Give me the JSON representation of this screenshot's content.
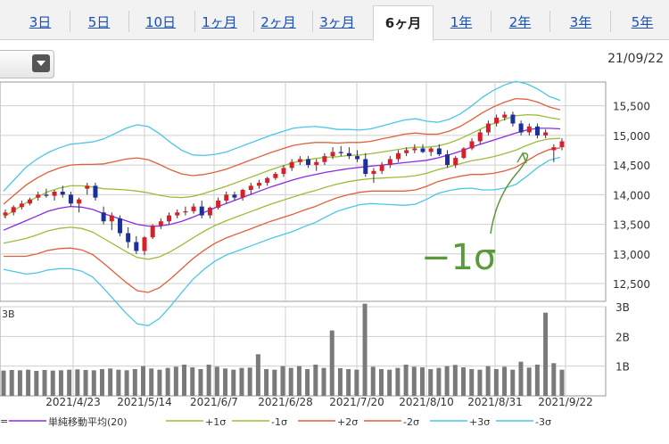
{
  "tabs": [
    {
      "label": "3日",
      "active": false
    },
    {
      "label": "5日",
      "active": false
    },
    {
      "label": "10日",
      "active": false
    },
    {
      "label": "1ヶ月",
      "active": false
    },
    {
      "label": "2ヶ月",
      "active": false
    },
    {
      "label": "3ヶ月",
      "active": false
    },
    {
      "label": "6ヶ月",
      "active": true
    },
    {
      "label": "1年",
      "active": false
    },
    {
      "label": "2年",
      "active": false
    },
    {
      "label": "3年",
      "active": false
    },
    {
      "label": "5年",
      "active": false
    }
  ],
  "header": {
    "date": "21/09/22"
  },
  "annotation": {
    "text": "−1σ",
    "color": "#5a9a3a"
  },
  "colors": {
    "up": "#d9202a",
    "down": "#1c2f9c",
    "ma": "#8a2be2",
    "s1": "#9bbd3a",
    "s2": "#e0603a",
    "s3": "#4cc6e6",
    "volume": "#7a7a7a"
  },
  "chart_data": {
    "type": "line",
    "price": {
      "ylim": [
        12200,
        15900
      ],
      "yticks": [
        "15,500",
        "15,000",
        "14,500",
        "14,000",
        "13,500",
        "13,000",
        "12,500"
      ],
      "ytick_values": [
        15500,
        15000,
        14500,
        14000,
        13500,
        13000,
        12500
      ],
      "bollinger_center": [
        13400,
        13480,
        13560,
        13640,
        13720,
        13770,
        13800,
        13790,
        13750,
        13680,
        13620,
        13560,
        13500,
        13470,
        13470,
        13500,
        13550,
        13620,
        13700,
        13780,
        13850,
        13920,
        13990,
        14060,
        14130,
        14190,
        14250,
        14300,
        14340,
        14380,
        14410,
        14440,
        14460,
        14480,
        14500,
        14520,
        14540,
        14560,
        14580,
        14620,
        14670,
        14730,
        14800,
        14860,
        14920,
        14980,
        15040,
        15090,
        15120,
        15120,
        15110
      ],
      "sigma": [
        220,
        260,
        300,
        320,
        330,
        340,
        350,
        360,
        380,
        420,
        470,
        520,
        560,
        560,
        520,
        460,
        400,
        350,
        320,
        300,
        290,
        290,
        290,
        290,
        290,
        290,
        290,
        280,
        270,
        250,
        230,
        220,
        210,
        210,
        220,
        230,
        240,
        240,
        220,
        200,
        200,
        210,
        230,
        260,
        280,
        290,
        290,
        260,
        220,
        180,
        160
      ],
      "candles": [
        [
          13650,
          13750,
          13600,
          13700
        ],
        [
          13700,
          13820,
          13650,
          13790
        ],
        [
          13790,
          13900,
          13750,
          13850
        ],
        [
          13850,
          13950,
          13820,
          13920
        ],
        [
          13950,
          14050,
          13900,
          14000
        ],
        [
          14000,
          14100,
          13950,
          13980
        ],
        [
          13980,
          14080,
          13900,
          14050
        ],
        [
          14050,
          14150,
          13950,
          14000
        ],
        [
          14000,
          14050,
          13800,
          13850
        ],
        [
          13850,
          13950,
          13700,
          13920
        ],
        [
          14100,
          14200,
          14000,
          14150
        ],
        [
          14150,
          14200,
          13900,
          13950
        ],
        [
          13700,
          13800,
          13500,
          13550
        ],
        [
          13550,
          13700,
          13400,
          13650
        ],
        [
          13600,
          13650,
          13300,
          13350
        ],
        [
          13350,
          13450,
          13100,
          13200
        ],
        [
          13200,
          13300,
          13000,
          13050
        ],
        [
          13050,
          13300,
          12980,
          13280
        ],
        [
          13280,
          13500,
          13250,
          13480
        ],
        [
          13480,
          13600,
          13420,
          13550
        ],
        [
          13550,
          13700,
          13500,
          13650
        ],
        [
          13650,
          13750,
          13600,
          13700
        ],
        [
          13700,
          13800,
          13650,
          13720
        ],
        [
          13720,
          13850,
          13680,
          13800
        ],
        [
          13800,
          13900,
          13600,
          13650
        ],
        [
          13650,
          13800,
          13600,
          13780
        ],
        [
          13780,
          13950,
          13750,
          13900
        ],
        [
          13900,
          14050,
          13850,
          14000
        ],
        [
          14000,
          14050,
          13900,
          13950
        ],
        [
          13950,
          14100,
          13900,
          14080
        ],
        [
          14080,
          14200,
          14000,
          14150
        ],
        [
          14150,
          14250,
          14100,
          14200
        ],
        [
          14200,
          14300,
          14150,
          14280
        ],
        [
          14280,
          14380,
          14250,
          14350
        ],
        [
          14350,
          14500,
          14300,
          14450
        ],
        [
          14450,
          14600,
          14400,
          14550
        ],
        [
          14550,
          14650,
          14500,
          14600
        ],
        [
          14600,
          14650,
          14450,
          14500
        ],
        [
          14500,
          14600,
          14400,
          14550
        ],
        [
          14550,
          14700,
          14500,
          14650
        ],
        [
          14650,
          14800,
          14600,
          14720
        ],
        [
          14720,
          14820,
          14650,
          14700
        ],
        [
          14700,
          14800,
          14600,
          14650
        ],
        [
          14650,
          14750,
          14550,
          14600
        ],
        [
          14600,
          14700,
          14300,
          14350
        ],
        [
          14350,
          14450,
          14200,
          14400
        ],
        [
          14400,
          14550,
          14350,
          14500
        ],
        [
          14500,
          14650,
          14450,
          14600
        ],
        [
          14600,
          14750,
          14550,
          14700
        ],
        [
          14700,
          14800,
          14650,
          14750
        ],
        [
          14750,
          14850,
          14700,
          14780
        ],
        [
          14780,
          14850,
          14700,
          14720
        ],
        [
          14720,
          14800,
          14650,
          14780
        ],
        [
          14780,
          14850,
          14650,
          14680
        ],
        [
          14680,
          14750,
          14450,
          14500
        ],
        [
          14500,
          14650,
          14450,
          14620
        ],
        [
          14620,
          14800,
          14600,
          14780
        ],
        [
          14780,
          14950,
          14750,
          14900
        ],
        [
          14900,
          15100,
          14850,
          15050
        ],
        [
          15050,
          15250,
          15000,
          15200
        ],
        [
          15200,
          15350,
          15150,
          15300
        ],
        [
          15300,
          15400,
          15250,
          15350
        ],
        [
          15350,
          15400,
          15150,
          15200
        ],
        [
          15200,
          15250,
          15000,
          15050
        ],
        [
          15050,
          15200,
          15000,
          15150
        ],
        [
          15150,
          15200,
          14950,
          15000
        ],
        [
          15000,
          15100,
          14950,
          15050
        ],
        [
          14750,
          14850,
          14550,
          14800
        ],
        [
          14800,
          14950,
          14750,
          14900
        ]
      ],
      "annotation_arrow": {
        "from": [
          0.78,
          13520
        ],
        "to": [
          0.79,
          14850
        ]
      }
    },
    "volume": {
      "ylim": [
        0,
        3000
      ],
      "yticks": [
        "3B",
        "2B",
        "1B"
      ],
      "ytick_values": [
        3000,
        2000,
        1000
      ],
      "left_label": "3B",
      "values": [
        850,
        870,
        860,
        880,
        840,
        870,
        850,
        860,
        880,
        890,
        870,
        860,
        900,
        920,
        880,
        860,
        900,
        1000,
        920,
        880,
        940,
        980,
        1050,
        960,
        900,
        1050,
        980,
        920,
        880,
        940,
        950,
        1400,
        900,
        880,
        1000,
        940,
        1000,
        900,
        1050,
        940,
        2200,
        930,
        900,
        880,
        3100,
        980,
        900,
        880,
        940,
        1050,
        980,
        960,
        900,
        940,
        1000,
        1040,
        960,
        900,
        880,
        1000,
        900,
        980,
        880,
        1150,
        950,
        1050,
        2800,
        1100,
        880
      ],
      "bar_color": "#7a7a7a"
    },
    "x": {
      "tick_labels": [
        "2021/4/23",
        "2021/5/14",
        "2021/6/7",
        "2021/6/28",
        "2021/7/20",
        "2021/8/10",
        "2021/8/31",
        "2021/9/22"
      ]
    },
    "legend": [
      {
        "label": "単純移動平均(20)",
        "color": "#8a2be2"
      },
      {
        "label": "+1σ",
        "color": "#9bbd3a"
      },
      {
        "label": "-1σ",
        "color": "#9bbd3a"
      },
      {
        "label": "+2σ",
        "color": "#e0603a"
      },
      {
        "label": "-2σ",
        "color": "#e0603a"
      },
      {
        "label": "+3σ",
        "color": "#4cc6e6"
      },
      {
        "label": "-3σ",
        "color": "#4cc6e6"
      }
    ],
    "legend_prefix": "=",
    "grid": true
  }
}
